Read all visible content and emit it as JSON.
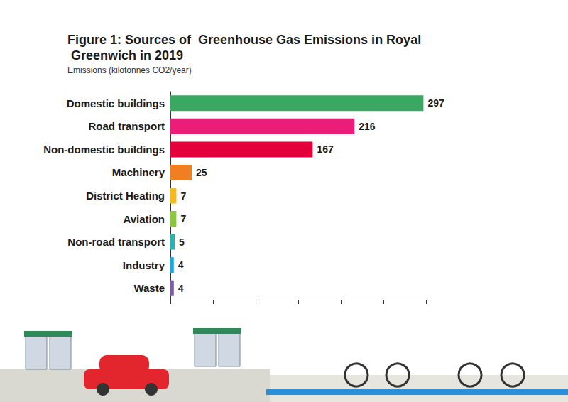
{
  "chart_data": {
    "type": "bar",
    "orientation": "horizontal",
    "title": "Figure 1: Sources of  Greenhouse Gas Emissions in Royal Greenwich in 2019",
    "subtitle": "Emissions (kilotonnes CO2/year)",
    "categories": [
      "Domestic buildings",
      "Road transport",
      "Non-domestic buildings",
      "Machinery",
      "District Heating",
      "Aviation",
      "Non-road transport",
      "Industry",
      "Waste"
    ],
    "values": [
      297,
      216,
      167,
      25,
      7,
      7,
      5,
      4,
      4
    ],
    "colors": [
      "#3aa862",
      "#ec1c79",
      "#e4003b",
      "#f07f22",
      "#f5b91c",
      "#8cc63f",
      "#27b3b0",
      "#1ea7df",
      "#7b5ea7"
    ],
    "xlim": [
      0,
      300
    ],
    "xticks": [
      0,
      50,
      100,
      150,
      200,
      250,
      300
    ],
    "grid": false,
    "data_labels": true,
    "tick_labels": "y"
  }
}
